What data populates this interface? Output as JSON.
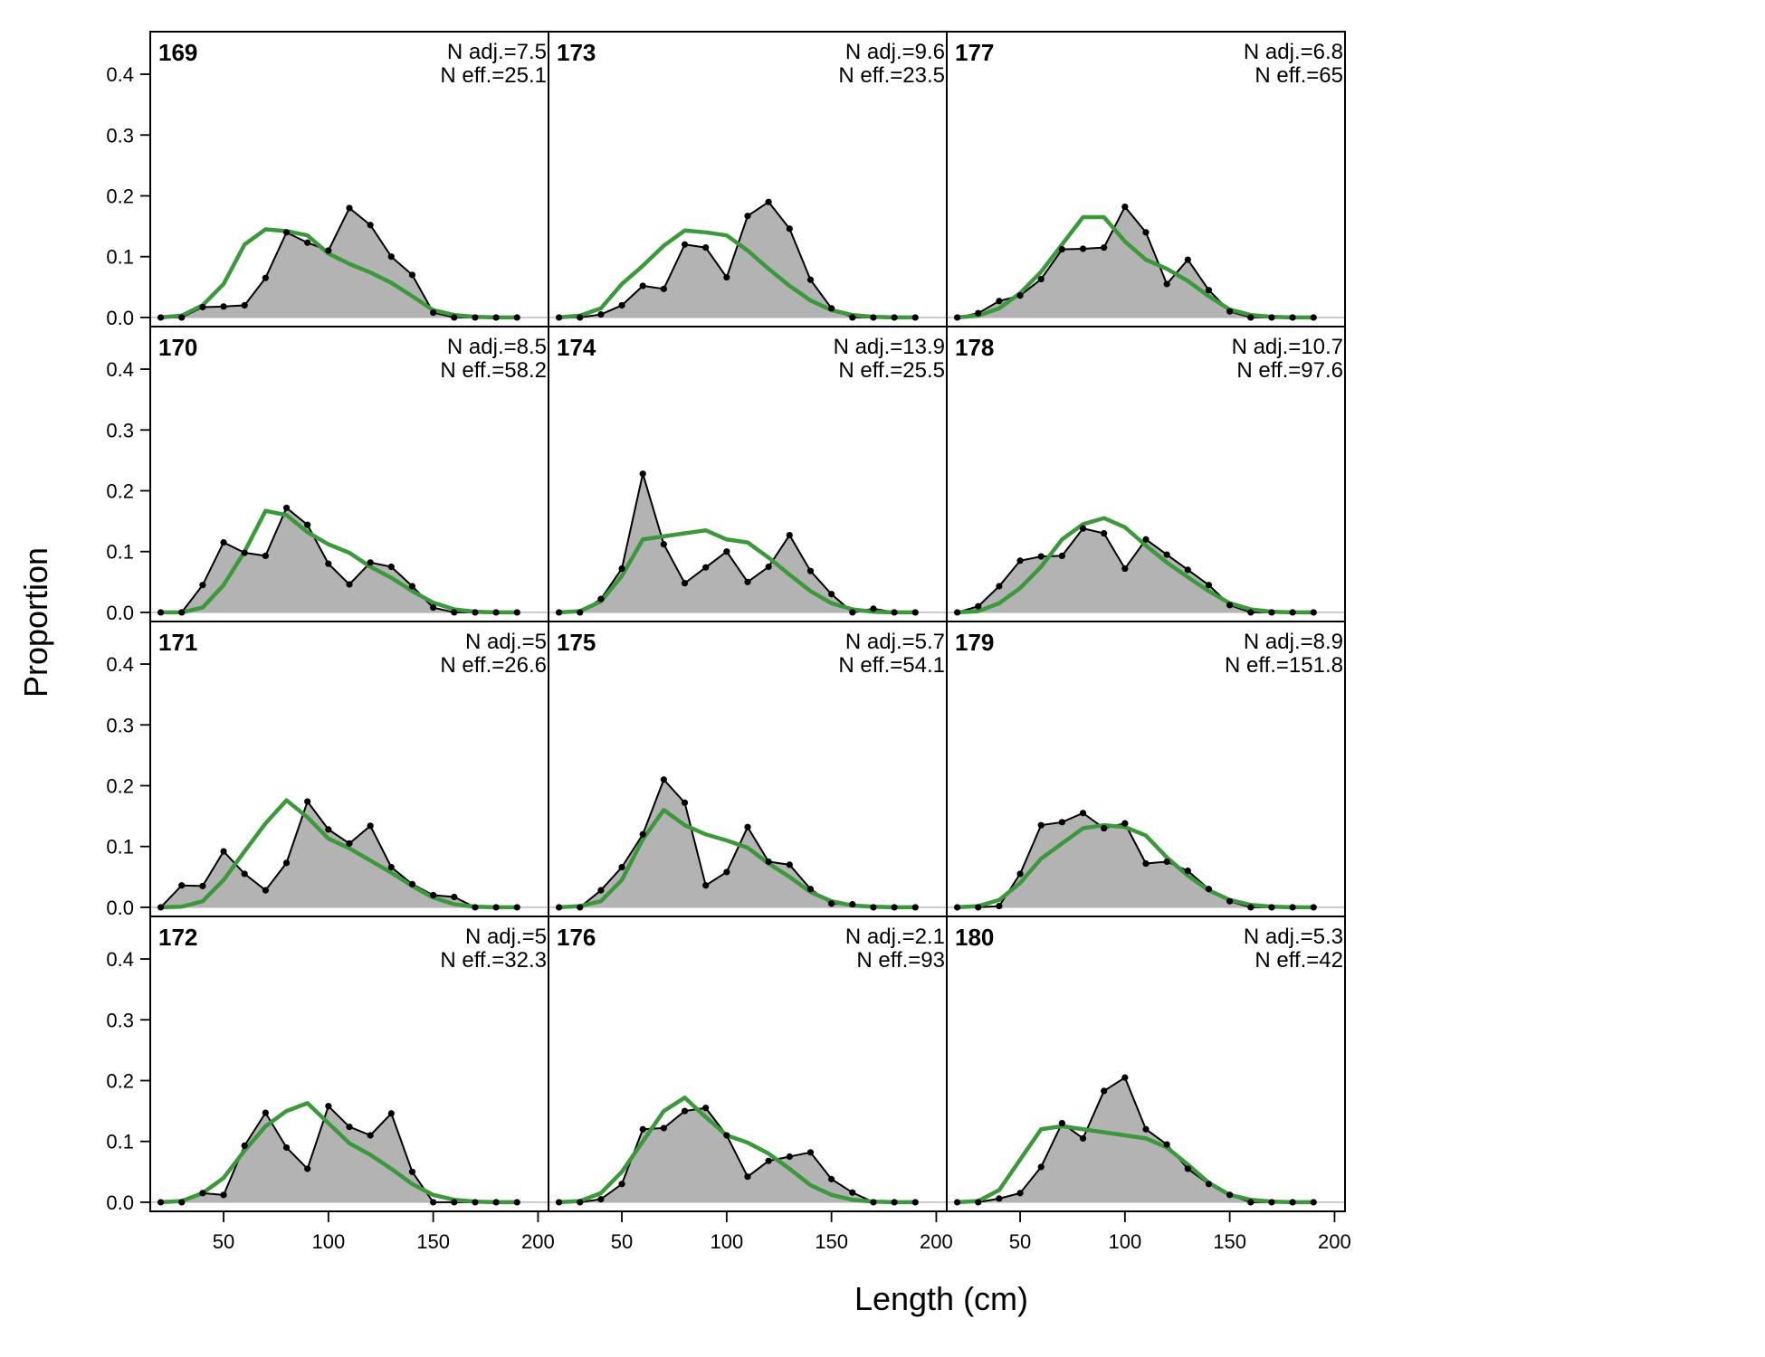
{
  "chart_data": {
    "type": "area",
    "ylabel": "Proportion",
    "xlabel": "Length (cm)",
    "xlim": [
      15,
      205
    ],
    "ylim": [
      -0.015,
      0.47
    ],
    "x_ticks": [
      50,
      100,
      150,
      200
    ],
    "y_ticks": [
      0.0,
      0.1,
      0.2,
      0.3,
      0.4
    ],
    "y_tick_labels": [
      "0.0",
      "0.1",
      "0.2",
      "0.3",
      "0.4"
    ],
    "colors": {
      "observed_fill": "#b3b3b3",
      "observed_line": "#000000",
      "expected_line": "#3a9a3a",
      "zero_line": "#bbbbbb"
    },
    "x": [
      20,
      30,
      40,
      50,
      60,
      70,
      80,
      90,
      100,
      110,
      120,
      130,
      140,
      150,
      160,
      170,
      180,
      190
    ],
    "panels": [
      {
        "label": "169",
        "n_adj": "N adj.=7.5",
        "n_eff": "N eff.=25.1",
        "observed": [
          0,
          0,
          0.017,
          0.018,
          0.02,
          0.065,
          0.14,
          0.123,
          0.11,
          0.18,
          0.152,
          0.1,
          0.07,
          0.008,
          0,
          0,
          0,
          0
        ],
        "expected": [
          0,
          0.003,
          0.02,
          0.055,
          0.12,
          0.145,
          0.142,
          0.135,
          0.105,
          0.088,
          0.074,
          0.057,
          0.035,
          0.012,
          0.004,
          0.001,
          0,
          0
        ]
      },
      {
        "label": "170",
        "n_adj": "N adj.=8.5",
        "n_eff": "N eff.=58.2",
        "observed": [
          0,
          0,
          0.045,
          0.115,
          0.098,
          0.093,
          0.172,
          0.144,
          0.08,
          0.046,
          0.082,
          0.075,
          0.043,
          0.008,
          0,
          0,
          0,
          0
        ],
        "expected": [
          0,
          0,
          0.008,
          0.045,
          0.1,
          0.167,
          0.16,
          0.132,
          0.112,
          0.098,
          0.075,
          0.057,
          0.035,
          0.016,
          0.005,
          0.001,
          0,
          0
        ]
      },
      {
        "label": "171",
        "n_adj": "N adj.=5",
        "n_eff": "N eff.=26.6",
        "observed": [
          0,
          0.036,
          0.035,
          0.092,
          0.055,
          0.028,
          0.073,
          0.174,
          0.128,
          0.105,
          0.134,
          0.066,
          0.038,
          0.02,
          0.017,
          0,
          0,
          0
        ],
        "expected": [
          0,
          0.001,
          0.01,
          0.045,
          0.092,
          0.138,
          0.176,
          0.148,
          0.113,
          0.097,
          0.077,
          0.057,
          0.035,
          0.016,
          0.005,
          0.001,
          0,
          0
        ]
      },
      {
        "label": "172",
        "n_adj": "N adj.=5",
        "n_eff": "N eff.=32.3",
        "observed": [
          0,
          0,
          0.015,
          0.012,
          0.093,
          0.147,
          0.09,
          0.055,
          0.158,
          0.124,
          0.11,
          0.146,
          0.05,
          0,
          0,
          0,
          0,
          0
        ],
        "expected": [
          0,
          0.002,
          0.015,
          0.04,
          0.085,
          0.125,
          0.15,
          0.163,
          0.13,
          0.097,
          0.078,
          0.055,
          0.03,
          0.012,
          0.004,
          0.001,
          0,
          0
        ]
      },
      {
        "label": "173",
        "n_adj": "N adj.=9.6",
        "n_eff": "N eff.=23.5",
        "observed": [
          0,
          0,
          0.005,
          0.02,
          0.052,
          0.047,
          0.12,
          0.115,
          0.066,
          0.167,
          0.19,
          0.146,
          0.062,
          0.015,
          0,
          0,
          0,
          0
        ],
        "expected": [
          0,
          0.003,
          0.015,
          0.055,
          0.085,
          0.118,
          0.143,
          0.14,
          0.135,
          0.11,
          0.08,
          0.052,
          0.028,
          0.012,
          0.004,
          0.001,
          0,
          0
        ]
      },
      {
        "label": "174",
        "n_adj": "N adj.=13.9",
        "n_eff": "N eff.=25.5",
        "observed": [
          0,
          0,
          0.022,
          0.072,
          0.228,
          0.112,
          0.048,
          0.074,
          0.1,
          0.05,
          0.075,
          0.127,
          0.068,
          0.03,
          0,
          0.006,
          0,
          0
        ],
        "expected": [
          0,
          0.002,
          0.018,
          0.06,
          0.12,
          0.125,
          0.13,
          0.135,
          0.12,
          0.115,
          0.09,
          0.062,
          0.035,
          0.015,
          0.005,
          0.001,
          0,
          0
        ]
      },
      {
        "label": "175",
        "n_adj": "N adj.=5.7",
        "n_eff": "N eff.=54.1",
        "observed": [
          0,
          0,
          0.028,
          0.066,
          0.12,
          0.21,
          0.172,
          0.036,
          0.058,
          0.132,
          0.075,
          0.07,
          0.03,
          0.006,
          0.005,
          0,
          0,
          0
        ],
        "expected": [
          0,
          0.002,
          0.01,
          0.045,
          0.112,
          0.16,
          0.135,
          0.12,
          0.11,
          0.098,
          0.072,
          0.05,
          0.025,
          0.01,
          0.003,
          0.001,
          0,
          0
        ]
      },
      {
        "label": "176",
        "n_adj": "N adj.=2.1",
        "n_eff": "N eff.=93",
        "observed": [
          0,
          0,
          0.005,
          0.03,
          0.12,
          0.122,
          0.15,
          0.155,
          0.11,
          0.042,
          0.068,
          0.075,
          0.082,
          0.038,
          0.016,
          0,
          0,
          0
        ],
        "expected": [
          0,
          0.002,
          0.015,
          0.05,
          0.1,
          0.15,
          0.172,
          0.14,
          0.11,
          0.098,
          0.08,
          0.055,
          0.028,
          0.012,
          0.004,
          0.001,
          0,
          0
        ]
      },
      {
        "label": "177",
        "n_adj": "N adj.=6.8",
        "n_eff": "N eff.=65",
        "observed": [
          0,
          0.007,
          0.027,
          0.036,
          0.063,
          0.112,
          0.113,
          0.115,
          0.182,
          0.14,
          0.055,
          0.095,
          0.045,
          0.01,
          0,
          0,
          0,
          0
        ],
        "expected": [
          0,
          0.003,
          0.015,
          0.04,
          0.075,
          0.12,
          0.165,
          0.165,
          0.125,
          0.095,
          0.08,
          0.06,
          0.035,
          0.013,
          0.004,
          0.001,
          0,
          0
        ]
      },
      {
        "label": "178",
        "n_adj": "N adj.=10.7",
        "n_eff": "N eff.=97.6",
        "observed": [
          0,
          0.01,
          0.043,
          0.085,
          0.092,
          0.093,
          0.138,
          0.13,
          0.072,
          0.12,
          0.095,
          0.07,
          0.045,
          0.012,
          0,
          0,
          0,
          0
        ],
        "expected": [
          0,
          0.002,
          0.015,
          0.04,
          0.075,
          0.12,
          0.145,
          0.155,
          0.14,
          0.11,
          0.082,
          0.058,
          0.035,
          0.015,
          0.005,
          0.001,
          0,
          0
        ]
      },
      {
        "label": "179",
        "n_adj": "N adj.=8.9",
        "n_eff": "N eff.=151.8",
        "observed": [
          0,
          0,
          0.002,
          0.055,
          0.135,
          0.14,
          0.155,
          0.13,
          0.138,
          0.072,
          0.075,
          0.06,
          0.03,
          0.01,
          0,
          0,
          0,
          0
        ],
        "expected": [
          0,
          0.002,
          0.012,
          0.04,
          0.08,
          0.105,
          0.13,
          0.135,
          0.132,
          0.118,
          0.082,
          0.052,
          0.028,
          0.012,
          0.004,
          0.001,
          0,
          0
        ]
      },
      {
        "label": "180",
        "n_adj": "N adj.=5.3",
        "n_eff": "N eff.=42",
        "observed": [
          0,
          0,
          0.006,
          0.015,
          0.058,
          0.13,
          0.105,
          0.183,
          0.205,
          0.12,
          0.095,
          0.055,
          0.03,
          0.012,
          0,
          0,
          0,
          0
        ],
        "expected": [
          0,
          0.002,
          0.02,
          0.07,
          0.12,
          0.125,
          0.12,
          0.115,
          0.11,
          0.105,
          0.09,
          0.062,
          0.032,
          0.012,
          0.004,
          0.001,
          0,
          0
        ]
      }
    ]
  }
}
